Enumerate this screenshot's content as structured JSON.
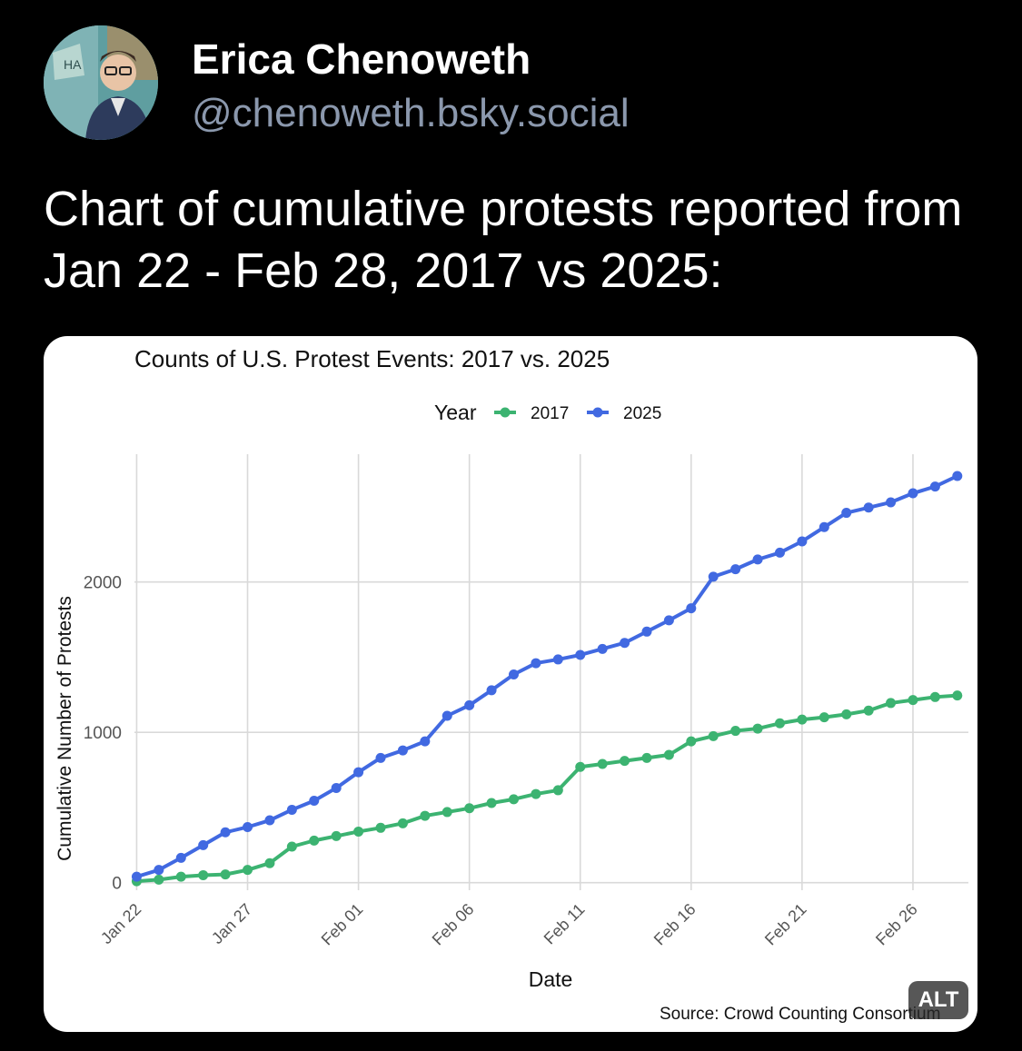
{
  "post": {
    "author_name": "Erica Chenoweth",
    "author_handle": "@chenoweth.bsky.social",
    "text": "Chart of cumulative protests reported from Jan 22 - Feb 28, 2017 vs 2025:",
    "alt_badge": "ALT"
  },
  "chart_data": {
    "type": "line",
    "title": "Counts of U.S. Protest Events: 2017 vs. 2025",
    "legend_title": "Year",
    "legend_position": "top",
    "xlabel": "Date",
    "ylabel": "Cumulative Number of Protests",
    "source": "Source: Crowd Counting Consortium",
    "ylim": [
      -50,
      2850
    ],
    "yticks": [
      0,
      1000,
      2000
    ],
    "x_tick_labels": [
      "Jan 22",
      "Jan 27",
      "Feb 01",
      "Feb 06",
      "Feb 11",
      "Feb 16",
      "Feb 21",
      "Feb 26"
    ],
    "x_tick_positions": [
      0,
      5,
      10,
      15,
      20,
      25,
      30,
      35
    ],
    "x_range": [
      -0.1,
      37.5
    ],
    "series": [
      {
        "name": "2017",
        "color": "#3cb371",
        "values": [
          10,
          20,
          40,
          50,
          55,
          85,
          130,
          240,
          280,
          310,
          340,
          365,
          395,
          445,
          470,
          495,
          530,
          555,
          590,
          615,
          770,
          790,
          810,
          830,
          850,
          940,
          975,
          1010,
          1025,
          1060,
          1085,
          1100,
          1120,
          1145,
          1195,
          1215,
          1235,
          1245
        ]
      },
      {
        "name": "2025",
        "color": "#4169e1",
        "values": [
          40,
          85,
          165,
          250,
          335,
          370,
          415,
          485,
          545,
          630,
          735,
          830,
          880,
          940,
          1110,
          1180,
          1280,
          1385,
          1460,
          1485,
          1515,
          1555,
          1595,
          1670,
          1745,
          1825,
          2035,
          2085,
          2150,
          2195,
          2270,
          2365,
          2460,
          2495,
          2530,
          2590,
          2635,
          2705
        ]
      }
    ]
  }
}
